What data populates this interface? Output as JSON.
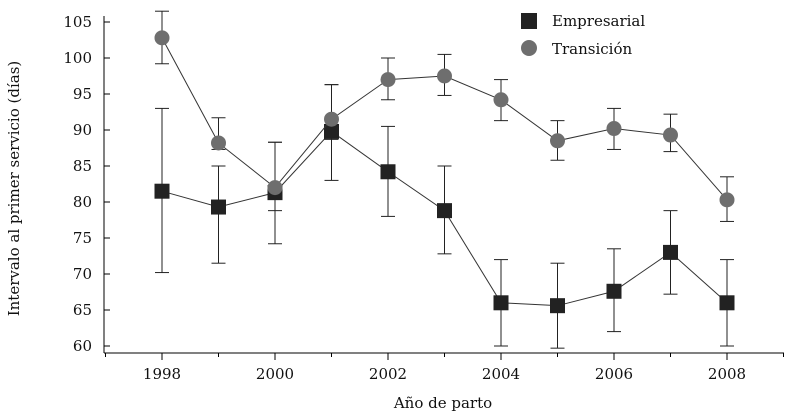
{
  "chart_data": {
    "type": "line",
    "title": "",
    "xlabel": "Año de parto",
    "ylabel": "Intervalo al primer servicio (días)",
    "x": [
      1998,
      1999,
      2000,
      2001,
      2002,
      2003,
      2004,
      2005,
      2006,
      2007,
      2008
    ],
    "xlim": [
      1997,
      2009
    ],
    "x_ticks": [
      1998,
      2000,
      2002,
      2004,
      2006,
      2008
    ],
    "ylim": [
      60,
      105
    ],
    "y_ticks": [
      60,
      65,
      70,
      75,
      80,
      85,
      90,
      95,
      100,
      105
    ],
    "grid": false,
    "legend_position": "top-right",
    "series": [
      {
        "name": "Empresarial",
        "marker": "square",
        "color": "#222222",
        "values": [
          81.5,
          79.3,
          81.3,
          89.8,
          84.2,
          78.8,
          66.0,
          65.6,
          67.6,
          73.0,
          66.0
        ],
        "err_low": [
          70.2,
          71.5,
          74.2,
          83.0,
          78.0,
          72.8,
          60.0,
          59.7,
          62.0,
          67.2,
          60.0
        ],
        "err_high": [
          93.0,
          85.0,
          88.3,
          96.3,
          90.5,
          85.0,
          72.0,
          71.5,
          73.5,
          78.8,
          72.0
        ]
      },
      {
        "name": "Transición",
        "marker": "circle",
        "color": "#6e6e6e",
        "values": [
          102.8,
          88.2,
          82.0,
          91.5,
          97.0,
          97.5,
          94.2,
          88.5,
          90.2,
          89.3,
          80.3
        ],
        "err_low": [
          99.2,
          87.3,
          78.8,
          88.7,
          94.2,
          94.8,
          91.3,
          85.8,
          87.3,
          87.0,
          77.3
        ],
        "err_high": [
          106.5,
          91.7,
          88.3,
          96.3,
          100.0,
          100.5,
          97.0,
          91.3,
          93.0,
          92.2,
          83.5
        ]
      }
    ]
  }
}
